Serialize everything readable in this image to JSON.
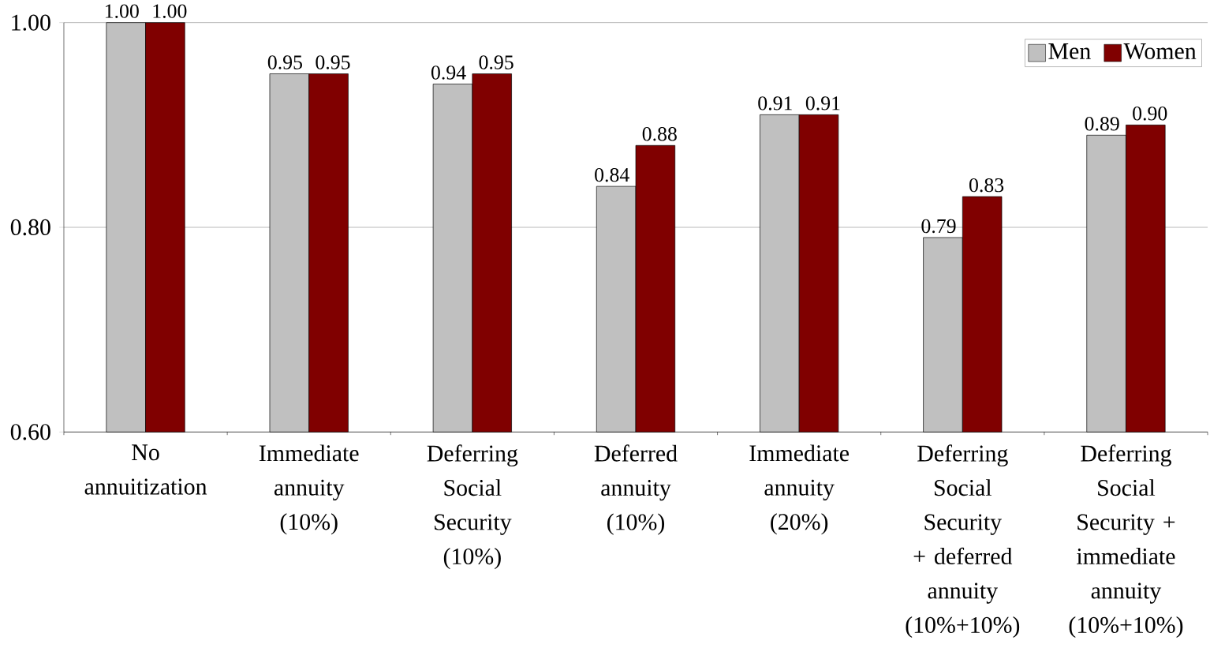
{
  "chart_data": {
    "type": "bar",
    "categories": [
      "No annuitization",
      "Immediate annuity (10%)",
      "Deferring Social Security (10%)",
      "Deferred annuity (10%)",
      "Immediate annuity (20%)",
      "Deferring Social Security + deferred annuity (10%+10%)",
      "Deferring Social Security + immediate annuity (10%+10%)"
    ],
    "series": [
      {
        "name": "Men",
        "color": "#c0c0c0",
        "values": [
          1.0,
          0.95,
          0.94,
          0.84,
          0.91,
          0.79,
          0.89
        ],
        "value_labels": [
          "1.00",
          "0.95",
          "0.94",
          "0.84",
          "0.91",
          "0.79",
          "0.89"
        ]
      },
      {
        "name": "Women",
        "color": "#800000",
        "values": [
          1.0,
          0.95,
          0.95,
          0.88,
          0.91,
          0.83,
          0.9
        ],
        "value_labels": [
          "1.00",
          "0.95",
          "0.95",
          "0.88",
          "0.91",
          "0.83",
          "0.90"
        ]
      }
    ],
    "ylim": [
      0.6,
      1.0
    ],
    "yticks": [
      {
        "value": 0.6,
        "label": "0.60"
      },
      {
        "value": 0.8,
        "label": "0.80"
      },
      {
        "value": 1.0,
        "label": "1.00"
      }
    ],
    "grid": "y",
    "legend": "top right"
  }
}
